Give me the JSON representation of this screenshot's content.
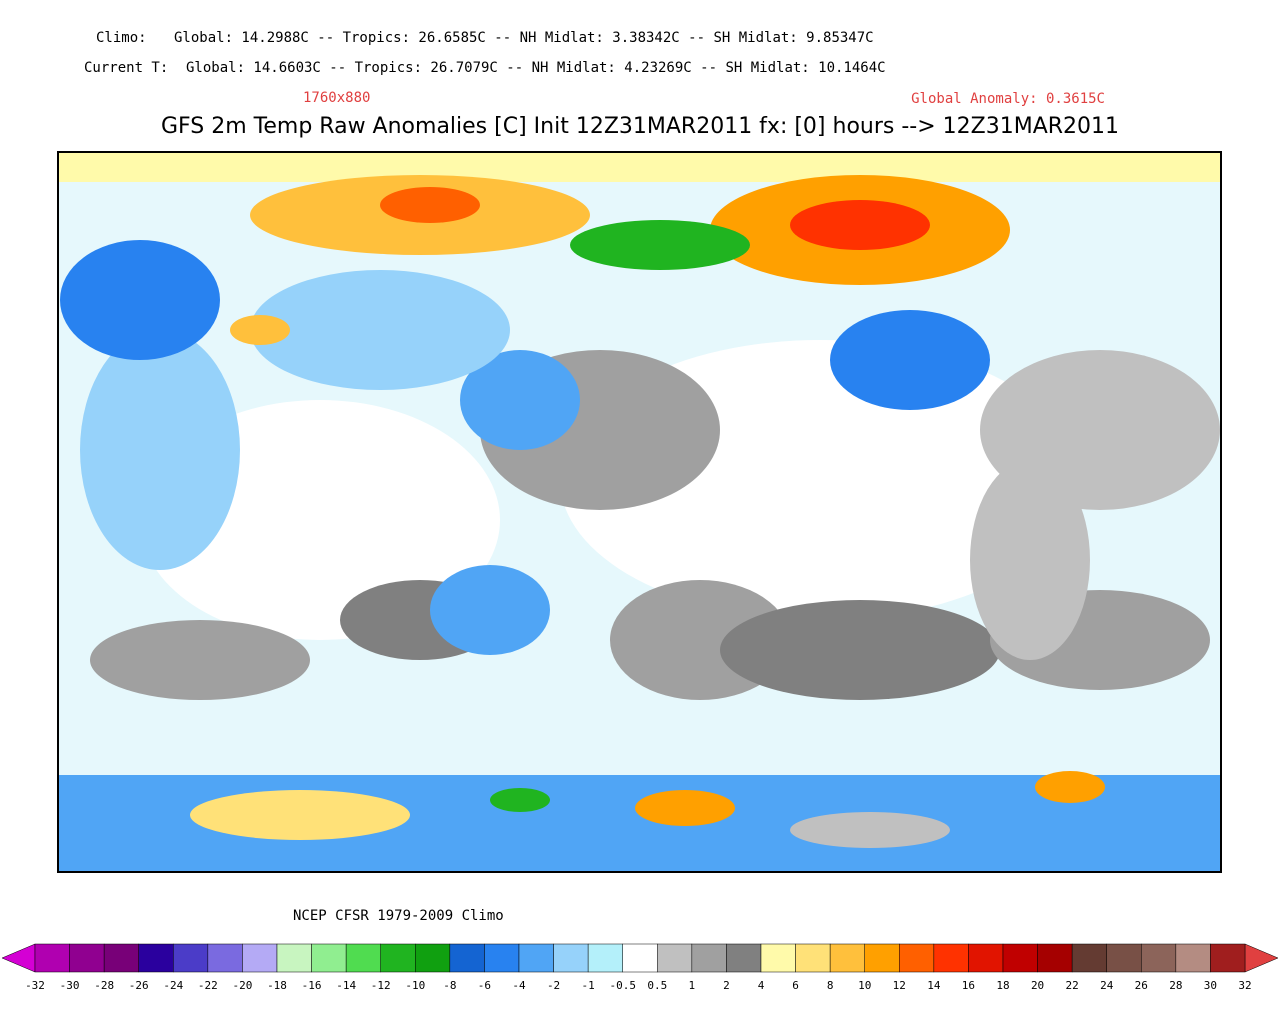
{
  "header": {
    "climo_label": "Climo:",
    "climo_values": "Global: 14.2988C -- Tropics: 26.6585C -- NH Midlat: 3.38342C -- SH Midlat: 9.85347C",
    "current_label": "Current T:",
    "current_values": "Global: 14.6603C -- Tropics: 26.7079C -- NH Midlat: 4.23269C -- SH Midlat: 10.1464C",
    "resolution": "1760x880",
    "global_anomaly": "Global Anomaly: 0.3615C",
    "title": "GFS 2m Temp Raw Anomalies [C] Init 12Z31MAR2011 fx: [0] hours --> 12Z31MAR2011"
  },
  "footer": {
    "climo_source": "NCEP CFSR 1979-2009 Climo"
  },
  "colorbar": {
    "labels": [
      "-32",
      "-30",
      "-28",
      "-26",
      "-24",
      "-22",
      "-20",
      "-18",
      "-16",
      "-14",
      "-12",
      "-10",
      "-8",
      "-6",
      "-4",
      "-2",
      "-1",
      "-0.5",
      "0.5",
      "1",
      "2",
      "4",
      "6",
      "8",
      "10",
      "12",
      "14",
      "16",
      "18",
      "20",
      "22",
      "24",
      "26",
      "28",
      "30",
      "32"
    ],
    "low_color": "#d400d4",
    "high_color": "#e04040",
    "colors": [
      "#b000b0",
      "#900090",
      "#780078",
      "#2a009e",
      "#4b3cc8",
      "#7a6ae0",
      "#b4aaf5",
      "#c8f5c0",
      "#90ee90",
      "#50dc50",
      "#20b420",
      "#10a010",
      "#1464d2",
      "#2882f0",
      "#50a5f5",
      "#96d2fa",
      "#b4f0fa",
      "#ffffff",
      "#c0c0c0",
      "#a0a0a0",
      "#808080",
      "#fffaaa",
      "#ffe178",
      "#ffc03c",
      "#ffa000",
      "#ff6000",
      "#ff3200",
      "#e11400",
      "#c00000",
      "#a50000",
      "#643b32",
      "#785046",
      "#8c645a",
      "#b48c82",
      "#a01e1e"
    ]
  }
}
